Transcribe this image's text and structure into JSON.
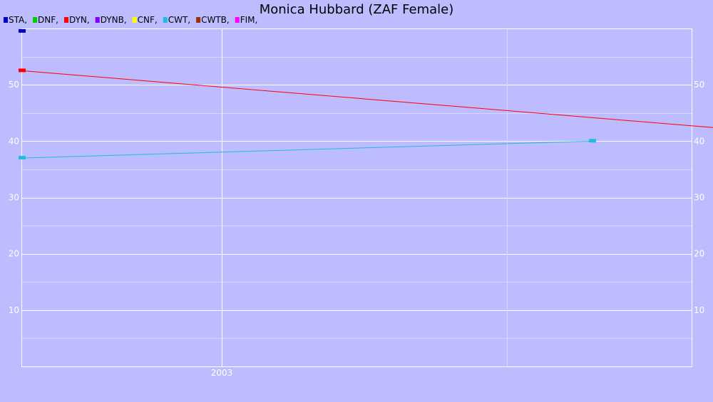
{
  "chart_data": {
    "type": "line",
    "title": "Monica Hubbard (ZAF Female)",
    "xlabel": "",
    "ylabel": "",
    "x_tick_labels": [
      "2003"
    ],
    "y_ticks": [
      10,
      20,
      30,
      40,
      50
    ],
    "ylim": [
      0,
      60
    ],
    "grid": true,
    "legend_position": "top-left",
    "legend": [
      {
        "label": "STA,",
        "color": "#0000cc"
      },
      {
        "label": "DNF,",
        "color": "#00cc00"
      },
      {
        "label": "DYN,",
        "color": "#ff0000"
      },
      {
        "label": "DYNB,",
        "color": "#7f00ff"
      },
      {
        "label": "CNF,",
        "color": "#ffff00"
      },
      {
        "label": "CWT,",
        "color": "#22bbdd"
      },
      {
        "label": "CWTB,",
        "color": "#993300"
      },
      {
        "label": "FIM,",
        "color": "#ff00ff"
      }
    ],
    "series": [
      {
        "name": "STA",
        "color": "#0000cc",
        "points": [
          {
            "x": 2002.3,
            "y": 59.5
          }
        ]
      },
      {
        "name": "DYN",
        "color": "#ff0000",
        "points": [
          {
            "x": 2002.3,
            "y": 52.5
          },
          {
            "x": 2005.3,
            "y": 40
          }
        ]
      },
      {
        "name": "CWT",
        "color": "#22bbdd",
        "points": [
          {
            "x": 2002.3,
            "y": 37
          },
          {
            "x": 2004.3,
            "y": 40
          }
        ]
      }
    ]
  }
}
